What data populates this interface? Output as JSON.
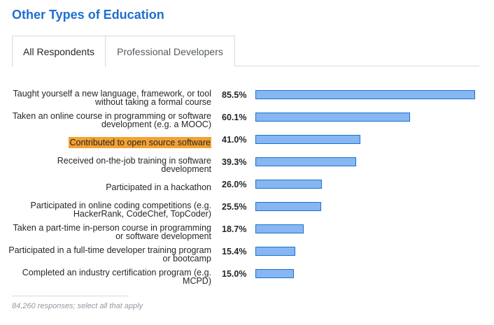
{
  "page": {
    "title": "Other Types of Education",
    "tabs": [
      {
        "label": "All Respondents",
        "active": true
      },
      {
        "label": "Professional Developers",
        "active": false
      }
    ],
    "footnote": "84,260 responses; select all that apply"
  },
  "colors": {
    "title": "#1f6fd0",
    "bar_fill": "#86b7f2",
    "bar_border": "#1f6fd0",
    "highlight": "#f4a133"
  },
  "chart_data": {
    "type": "bar",
    "orientation": "horizontal",
    "unit": "%",
    "xlim": [
      0,
      100
    ],
    "grid": false,
    "categories": [
      "Taught yourself a new language, framework, or tool without taking a formal course",
      "Taken an online course in programming or software development (e.g. a MOOC)",
      "Contributed to open source software",
      "Received on-the-job training in software development",
      "Participated in a hackathon",
      "Participated in online coding competitions (e.g. HackerRank, CodeChef, TopCoder)",
      "Taken a part-time in-person course in programming or software development",
      "Participated in a full-time developer training program or bootcamp",
      "Completed an industry certification program (e.g. MCPD)"
    ],
    "values": [
      85.5,
      60.1,
      41.0,
      39.3,
      26.0,
      25.5,
      18.7,
      15.4,
      15.0
    ],
    "value_labels": [
      "85.5%",
      "60.1%",
      "41.0%",
      "39.3%",
      "26.0%",
      "25.5%",
      "18.7%",
      "15.4%",
      "15.0%"
    ],
    "highlighted_category_index": 2
  }
}
